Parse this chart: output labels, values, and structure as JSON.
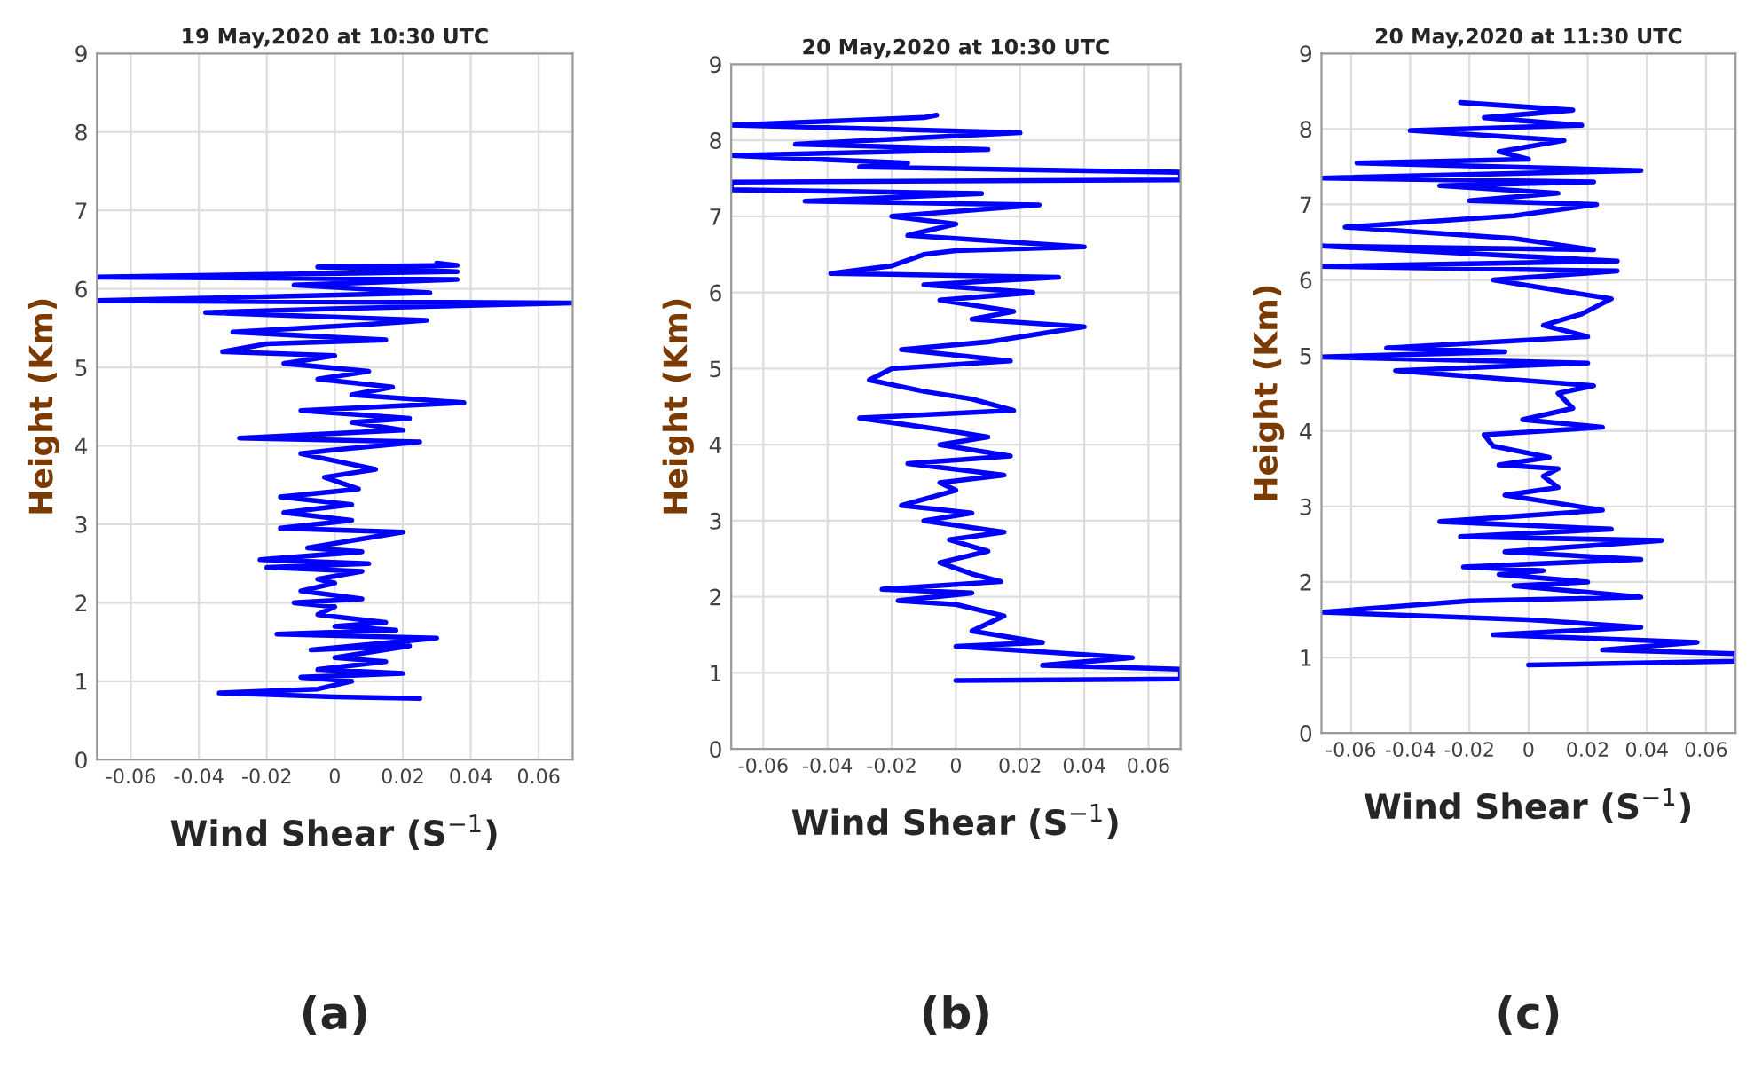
{
  "chart_data": [
    {
      "type": "line",
      "title": "19 May,2020 at 10:30 UTC",
      "xlabel": "Wind Shear (S$^{−1}$)",
      "ylabel": "Height (Km)",
      "annotations": [
        "(a)"
      ],
      "xlim": [
        -0.07,
        0.07
      ],
      "ylim": [
        0,
        9
      ],
      "xticks": [
        -0.06,
        -0.04,
        -0.02,
        0,
        0.02,
        0.04,
        0.06
      ],
      "yticks": [
        0,
        1,
        2,
        3,
        4,
        5,
        6,
        7,
        8,
        9
      ],
      "grid": true,
      "legend": false,
      "series": [
        {
          "color": "#0000ff",
          "x": [
            0.025,
            0.0,
            -0.034,
            -0.005,
            0.005,
            -0.01,
            0.02,
            -0.005,
            0.015,
            0.0,
            0.022,
            -0.007,
            0.03,
            -0.017,
            0.018,
            0.0,
            0.015,
            -0.005,
            0.0,
            -0.012,
            0.008,
            -0.01,
            0.0,
            -0.005,
            0.008,
            -0.02,
            0.01,
            -0.022,
            0.008,
            -0.008,
            0.02,
            -0.016,
            0.005,
            -0.015,
            0.005,
            -0.016,
            0.007,
            -0.003,
            0.012,
            -0.01,
            0.0,
            0.025,
            -0.028,
            0.02,
            0.005,
            0.022,
            -0.01,
            0.038,
            0.005,
            0.017,
            -0.005,
            0.01,
            -0.015,
            0.0,
            -0.033,
            -0.02,
            0.015,
            -0.03,
            0.01,
            0.027,
            -0.038,
            0.002,
            0.07,
            -0.07,
            0.028,
            -0.012,
            0.036,
            -0.07,
            0.036,
            -0.005,
            0.036,
            0.03
          ],
          "values": [
            0.78,
            0.8,
            0.85,
            0.9,
            1.0,
            1.05,
            1.1,
            1.15,
            1.25,
            1.3,
            1.45,
            1.4,
            1.55,
            1.6,
            1.65,
            1.7,
            1.75,
            1.85,
            1.95,
            2.0,
            2.05,
            2.15,
            2.25,
            2.3,
            2.4,
            2.45,
            2.5,
            2.55,
            2.65,
            2.7,
            2.9,
            2.95,
            3.05,
            3.15,
            3.25,
            3.35,
            3.45,
            3.6,
            3.7,
            3.9,
            3.95,
            4.05,
            4.1,
            4.2,
            4.3,
            4.35,
            4.45,
            4.55,
            4.65,
            4.75,
            4.85,
            4.95,
            5.05,
            5.15,
            5.2,
            5.3,
            5.35,
            5.45,
            5.55,
            5.6,
            5.7,
            5.75,
            5.82,
            5.85,
            5.95,
            6.05,
            6.12,
            6.15,
            6.22,
            6.28,
            6.3,
            6.33
          ]
        }
      ]
    },
    {
      "type": "line",
      "title": "20 May,2020 at 10:30 UTC",
      "xlabel": "Wind Shear (S$^{−1}$)",
      "ylabel": "Height (Km)",
      "annotations": [
        "(b)"
      ],
      "xlim": [
        -0.07,
        0.07
      ],
      "ylim": [
        0,
        9
      ],
      "xticks": [
        -0.06,
        -0.04,
        -0.02,
        0,
        0.02,
        0.04,
        0.06
      ],
      "yticks": [
        0,
        1,
        2,
        3,
        4,
        5,
        6,
        7,
        8,
        9
      ],
      "grid": true,
      "legend": false,
      "series": [
        {
          "color": "#0000ff",
          "x": [
            0.0,
            0.07,
            0.07,
            0.027,
            0.055,
            0.0,
            0.027,
            0.005,
            0.015,
            0.0,
            -0.018,
            0.005,
            -0.023,
            0.014,
            0.005,
            -0.005,
            0.01,
            -0.002,
            0.015,
            -0.01,
            0.005,
            -0.017,
            0.0,
            -0.005,
            0.015,
            -0.015,
            0.017,
            -0.005,
            0.01,
            -0.005,
            -0.03,
            0.018,
            0.005,
            -0.01,
            -0.027,
            -0.02,
            0.017,
            -0.017,
            0.01,
            0.04,
            0.005,
            0.018,
            -0.005,
            0.024,
            -0.01,
            0.032,
            -0.039,
            -0.02,
            -0.01,
            0.0,
            0.04,
            -0.015,
            0.0,
            -0.02,
            0.026,
            -0.047,
            0.008,
            -0.07,
            -0.07,
            0.07,
            0.07,
            -0.03,
            -0.015,
            -0.07,
            0.01,
            -0.05,
            0.02,
            -0.07,
            -0.01,
            -0.006
          ],
          "values": [
            0.9,
            0.92,
            1.05,
            1.1,
            1.2,
            1.35,
            1.4,
            1.55,
            1.75,
            1.9,
            1.95,
            2.05,
            2.1,
            2.2,
            2.3,
            2.45,
            2.6,
            2.75,
            2.85,
            3.0,
            3.1,
            3.2,
            3.4,
            3.5,
            3.6,
            3.75,
            3.85,
            4.0,
            4.1,
            4.2,
            4.35,
            4.45,
            4.6,
            4.7,
            4.85,
            5.0,
            5.1,
            5.25,
            5.35,
            5.55,
            5.65,
            5.75,
            5.9,
            6.0,
            6.1,
            6.2,
            6.25,
            6.35,
            6.5,
            6.55,
            6.6,
            6.75,
            6.9,
            7.0,
            7.15,
            7.2,
            7.3,
            7.35,
            7.45,
            7.48,
            7.58,
            7.65,
            7.7,
            7.8,
            7.88,
            7.95,
            8.1,
            8.2,
            8.3,
            8.33
          ]
        }
      ]
    },
    {
      "type": "line",
      "title": "20 May,2020 at 11:30 UTC",
      "xlabel": "Wind Shear (S$^{−1}$)",
      "ylabel": "Height (Km)",
      "annotations": [
        "(c)"
      ],
      "xlim": [
        -0.07,
        0.07
      ],
      "ylim": [
        0,
        9
      ],
      "xticks": [
        -0.06,
        -0.04,
        -0.02,
        0,
        0.02,
        0.04,
        0.06
      ],
      "yticks": [
        0,
        1,
        2,
        3,
        4,
        5,
        6,
        7,
        8,
        9
      ],
      "grid": true,
      "legend": false,
      "series": [
        {
          "color": "#0000ff",
          "x": [
            0.0,
            0.07,
            0.07,
            0.025,
            0.057,
            -0.012,
            0.038,
            0.0,
            -0.07,
            -0.02,
            0.038,
            -0.005,
            0.02,
            -0.01,
            0.005,
            -0.022,
            0.038,
            -0.008,
            0.045,
            -0.023,
            0.028,
            -0.03,
            0.025,
            -0.008,
            0.01,
            0.005,
            0.01,
            -0.01,
            0.007,
            -0.012,
            -0.015,
            0.025,
            -0.002,
            0.015,
            0.01,
            0.022,
            -0.045,
            0.02,
            -0.07,
            -0.008,
            -0.048,
            0.02,
            0.005,
            0.018,
            0.028,
            -0.012,
            0.03,
            -0.07,
            0.03,
            -0.07,
            0.022,
            -0.005,
            -0.062,
            -0.005,
            0.023,
            -0.02,
            0.01,
            -0.03,
            0.022,
            -0.07,
            0.038,
            -0.058,
            0.0,
            -0.01,
            0.012,
            -0.04,
            0.018,
            -0.015,
            0.015,
            -0.023
          ],
          "values": [
            0.9,
            0.95,
            1.05,
            1.1,
            1.2,
            1.3,
            1.4,
            1.5,
            1.6,
            1.75,
            1.8,
            1.95,
            2.0,
            2.1,
            2.15,
            2.2,
            2.3,
            2.4,
            2.55,
            2.6,
            2.7,
            2.8,
            2.95,
            3.15,
            3.25,
            3.4,
            3.5,
            3.55,
            3.65,
            3.8,
            3.95,
            4.05,
            4.15,
            4.3,
            4.5,
            4.6,
            4.8,
            4.9,
            4.98,
            5.05,
            5.1,
            5.25,
            5.4,
            5.55,
            5.75,
            6.0,
            6.12,
            6.18,
            6.25,
            6.45,
            6.4,
            6.55,
            6.7,
            6.85,
            7.0,
            7.05,
            7.15,
            7.25,
            7.3,
            7.35,
            7.45,
            7.55,
            7.6,
            7.7,
            7.85,
            7.98,
            8.05,
            8.15,
            8.25,
            8.35
          ]
        }
      ]
    }
  ]
}
